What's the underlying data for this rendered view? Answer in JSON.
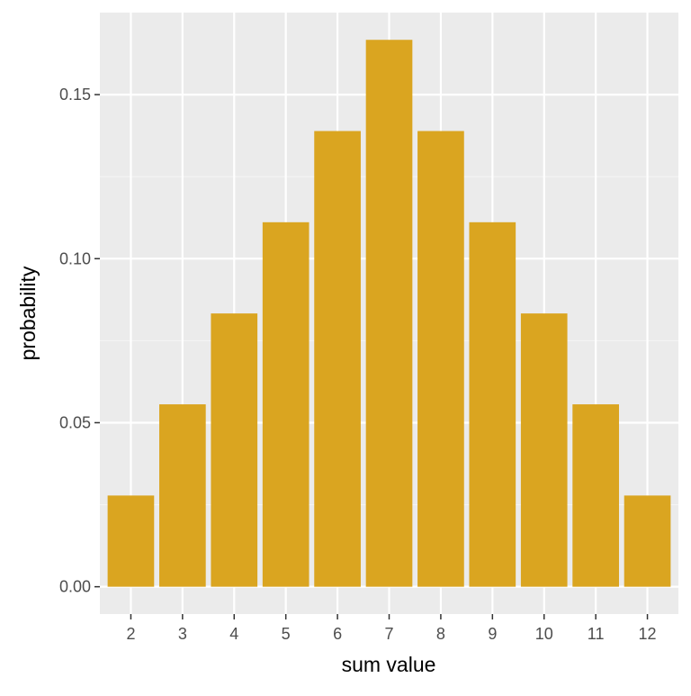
{
  "colors": {
    "bar": "#DAA520",
    "panel_background": "#EBEBEB",
    "grid_major": "#FFFFFF",
    "grid_minor": "#F5F5F5",
    "tick": "#333333"
  },
  "chart_data": {
    "type": "bar",
    "title": "",
    "xlabel": "sum value",
    "ylabel": "probability",
    "categories": [
      "2",
      "3",
      "4",
      "5",
      "6",
      "7",
      "8",
      "9",
      "10",
      "11",
      "12"
    ],
    "values": [
      0.0278,
      0.0556,
      0.0833,
      0.1111,
      0.1389,
      0.1667,
      0.1389,
      0.1111,
      0.0833,
      0.0556,
      0.0278
    ],
    "y_ticks": [
      "0.00",
      "0.05",
      "0.10",
      "0.15"
    ],
    "y_tick_values": [
      0,
      0.05,
      0.1,
      0.15
    ],
    "ylim": [
      -0.00833,
      0.175
    ],
    "grid": true,
    "legend": "none"
  }
}
